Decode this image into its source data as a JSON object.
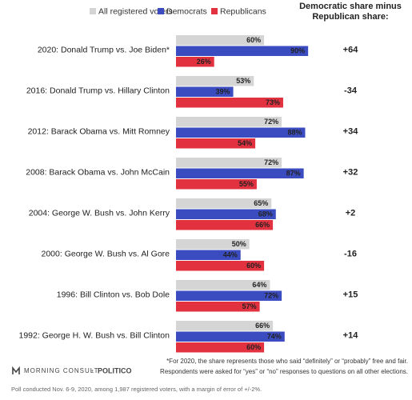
{
  "chart_data": {
    "type": "grouped-hbar",
    "categories": [
      "2020: Donald Trump vs. Joe Biden*",
      "2016: Donald Trump vs. Hillary Clinton",
      "2012: Barack Obama vs. Mitt Romney",
      "2008: Barack Obama vs. John McCain",
      "2004: George W. Bush vs. John Kerry",
      "2000: George W. Bush vs. Al Gore",
      "1996: Bill Clinton vs. Bob Dole",
      "1992: George H. W. Bush vs. Bill Clinton"
    ],
    "series": [
      {
        "name": "All registered voters",
        "color": "#d5d5d5",
        "label_color": "#666666",
        "values": [
          60,
          53,
          72,
          72,
          65,
          50,
          64,
          66
        ],
        "value_labels": [
          "60%",
          "53%",
          "72%",
          "72%",
          "65%",
          "50%",
          "64%",
          "66%"
        ]
      },
      {
        "name": "Democrats",
        "color": "#3b4cc0",
        "label_color": "#ffffff",
        "values": [
          90,
          39,
          88,
          87,
          68,
          44,
          72,
          74
        ],
        "value_labels": [
          "90%",
          "39%",
          "88%",
          "87%",
          "68%",
          "44%",
          "72%",
          "74%"
        ]
      },
      {
        "name": "Republicans",
        "color": "#e3323f",
        "label_color": "#ffffff",
        "values": [
          26,
          73,
          54,
          55,
          66,
          60,
          57,
          60
        ],
        "value_labels": [
          "26%",
          "73%",
          "54%",
          "55%",
          "66%",
          "60%",
          "57%",
          "60%"
        ]
      }
    ],
    "difference": {
      "title_lines": [
        "Democratic share minus",
        "Republican share:"
      ],
      "positive_color": "#3b4cc0",
      "negative_color": "#e3323f",
      "values": [
        64,
        -34,
        34,
        32,
        2,
        -16,
        15,
        14
      ],
      "value_labels": [
        "+64",
        "-34",
        "+34",
        "+32",
        "+2",
        "-16",
        "+15",
        "+14"
      ]
    },
    "footnotes": [
      "*For 2020, the share represents those who said “definitely” or “probably” free and fair.",
      "Respondents were asked for “yes” or “no” responses to questions on all other elections."
    ],
    "logos": [
      "MORNING CONSULT",
      "•",
      "POLITICO"
    ],
    "source": "Poll conducted Nov. 6-9, 2020, among 1,987 registered voters, with a margin of error of +/-2%."
  }
}
